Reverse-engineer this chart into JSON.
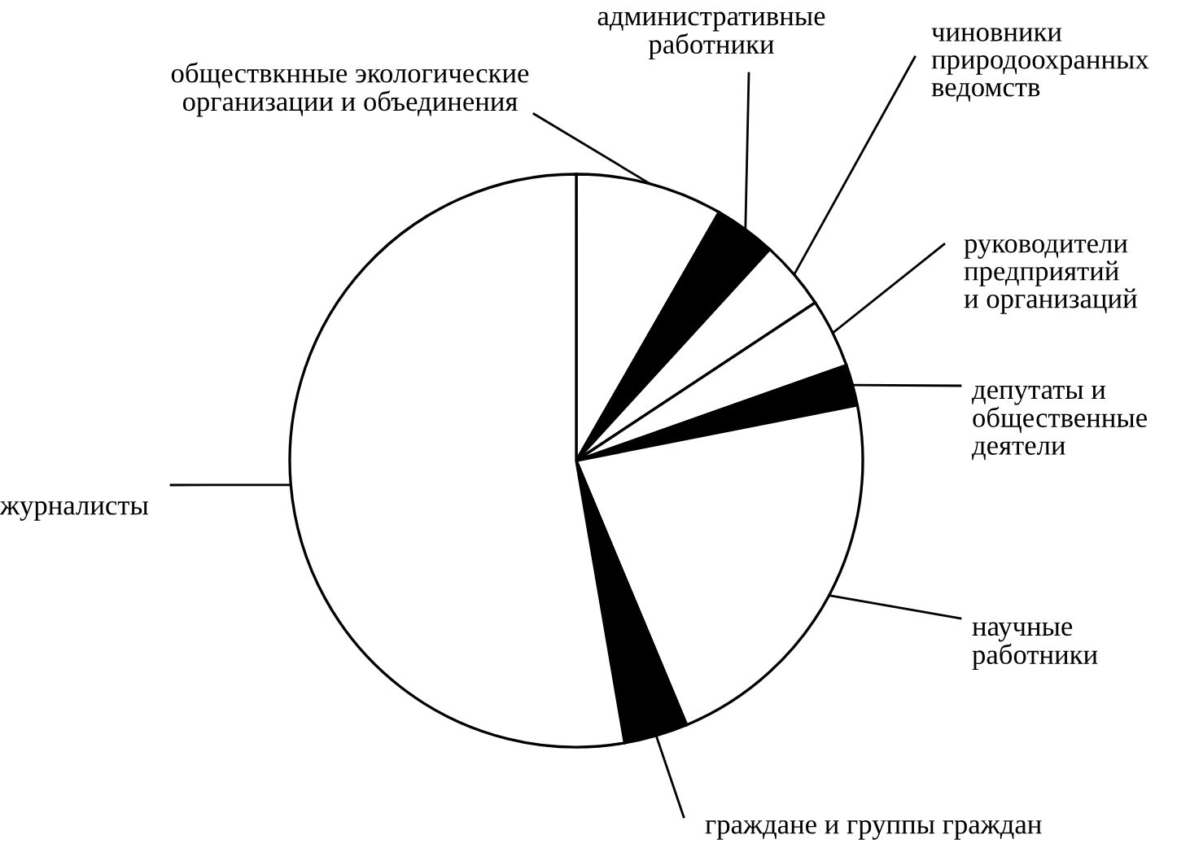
{
  "chart_data": {
    "type": "pie",
    "categories": [
      "обществкнные экологические\nорганизации и объединения",
      "административные\nработники",
      "чиновники\nприродоохранных\nведомств",
      "руководители\nпредприятий\nи организаций",
      "депутаты и\nобщественные\nдеятели",
      "научные\nработники",
      "граждане и группы граждан",
      "журналисты"
    ],
    "values": [
      8.3,
      3.5,
      3.9,
      3.9,
      2.3,
      21.8,
      3.6,
      52.7
    ],
    "colors": [
      "#ffffff",
      "#000000",
      "#ffffff",
      "#ffffff",
      "#000000",
      "#ffffff",
      "#000000",
      "#ffffff"
    ]
  }
}
